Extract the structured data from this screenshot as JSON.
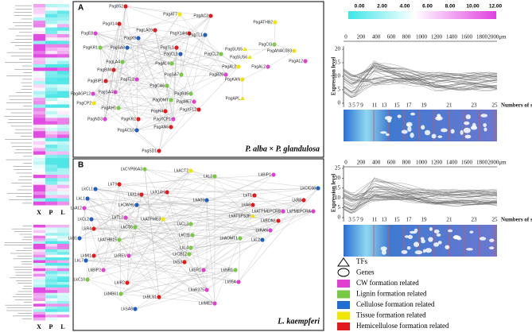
{
  "heatmap_top": {
    "columns": [
      "X",
      "P",
      "L"
    ]
  },
  "heatmap_bottom": {
    "columns": [
      "X",
      "P",
      "L"
    ]
  },
  "color_scale": {
    "ticks": [
      "0.00",
      "2.00",
      "4.00",
      "6.00",
      "8.00",
      "10.00",
      "12.00"
    ]
  },
  "panel_a": {
    "label": "A",
    "species": "P. alba × P. glandulosa",
    "nodes": [
      "PagB52",
      "PagAT7",
      "PagAC2",
      "PagX14",
      "PagE8",
      "PagLA09",
      "PagX14H",
      "PagTL1",
      "PagX9",
      "PagSA8",
      "PagTL1",
      "PagKR1",
      "PagCL2",
      "PagCL1",
      "PagAL4",
      "PagLA4",
      "PagBIM",
      "PagSA7",
      "PagTL2",
      "PagBIP1",
      "PagCA6",
      "PagSA4",
      "PagB46",
      "PagME7",
      "PagOMT",
      "PagAGP12",
      "PagND3",
      "PagSD1",
      "PagAN6",
      "PagAC10",
      "PagXCP1",
      "PagH4",
      "PagCP2",
      "PagAH1",
      "PagXF12",
      "PagKR2",
      "PagB26",
      "PagAL2",
      "PagATHB2",
      "PagSUS5",
      "PagCI3",
      "PagANAC083",
      "PagSUS6",
      "PagAL2",
      "PagKAN",
      "PagAPL",
      "PagA12"
    ]
  },
  "panel_b": {
    "label": "B",
    "species": "L. kaempferi",
    "nodes": [
      "LkCYP86A3",
      "LkACT2",
      "LkL2",
      "LkBIP1",
      "LkCL1",
      "LkT9",
      "LkX14",
      "LkX14H",
      "LkA09",
      "LkT1",
      "LkR8",
      "LkCIC08",
      "LkL1",
      "LkA12",
      "LkCWH6",
      "LkA8",
      "LkATPMEPCRB",
      "LkPMEPCRA",
      "LkCL2",
      "LkTL2",
      "LkATPME3",
      "LkATSPS3F",
      "LkBON1",
      "LkR4",
      "LkCS5",
      "LkCL3",
      "LkKAN",
      "LkB1",
      "LkATHB15",
      "LkC11",
      "LkAOMT1",
      "LkL2",
      "LkL7",
      "LkREV",
      "LkL4",
      "LkMI1",
      "LkCB12",
      "LkS3",
      "LkSR1",
      "LkBIP2",
      "LkIR2",
      "LkC10",
      "LkMB61",
      "LkNR1",
      "Lk95A",
      "LkaR375",
      "LkBLS1",
      "LkIME2",
      "LkSA8"
    ]
  },
  "profile_top": {
    "y_label": "Expression level",
    "top_ticks": [
      "0",
      "200",
      "400",
      "600",
      "800",
      "1000",
      "1200",
      "1400",
      "1600",
      "1800",
      "2000μm"
    ],
    "y_ticks": [
      "0",
      "5",
      "10",
      "15",
      "20"
    ],
    "slice_ticks": [
      "1",
      "3",
      "5",
      "7",
      "9",
      "11",
      "13",
      "15",
      "17",
      "19",
      "21",
      "23",
      "25"
    ],
    "x_label": "Numbers of slices"
  },
  "profile_bottom": {
    "y_label": "Expression level",
    "top_ticks": [
      "0",
      "200",
      "400",
      "600",
      "800",
      "1000",
      "1200",
      "1400",
      "1600",
      "1800",
      "2000μm"
    ],
    "y_ticks": [
      "0",
      "5",
      "10",
      "15",
      "20",
      "25"
    ],
    "slice_ticks": [
      "1",
      "3",
      "5",
      "7",
      "9",
      "11",
      "13",
      "15",
      "17",
      "19",
      "21",
      "23",
      "25"
    ],
    "x_label": "Numbers of slices"
  },
  "legend": {
    "items": [
      "TFs",
      "Genes",
      "CW formation related",
      "Lignin formation related",
      "Cellulose formation related",
      "Tissue formation related",
      "Hemicellulose formation related"
    ]
  }
}
